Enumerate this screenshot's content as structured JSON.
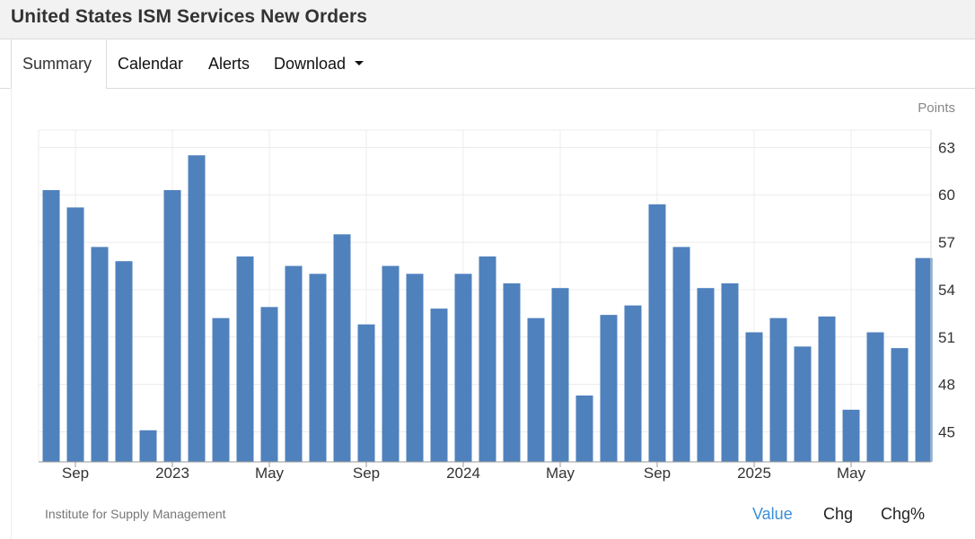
{
  "page": {
    "title": "United States ISM Services New Orders"
  },
  "tabs": [
    {
      "label": "Summary",
      "active": true
    },
    {
      "label": "Calendar",
      "active": false
    },
    {
      "label": "Alerts",
      "active": false
    },
    {
      "label": "Download",
      "active": false
    }
  ],
  "chart": {
    "unit_label": "Points",
    "source": "Institute for Supply Management",
    "bar_color": "#4f81bd"
  },
  "footer_tabs": [
    {
      "label": "Value",
      "active": true
    },
    {
      "label": "Chg",
      "active": false
    },
    {
      "label": "Chg%",
      "active": false
    }
  ],
  "chart_data": {
    "type": "bar",
    "ylabel": "Points",
    "ylim": [
      43.1,
      64.1
    ],
    "yticks": [
      45,
      48,
      51,
      54,
      57,
      60,
      63
    ],
    "grid": true,
    "x_tick_labels": [
      {
        "label": "Sep",
        "category": "2022-09"
      },
      {
        "label": "2023",
        "category": "2023-01"
      },
      {
        "label": "May",
        "category": "2023-05"
      },
      {
        "label": "Sep",
        "category": "2023-09"
      },
      {
        "label": "2024",
        "category": "2024-01"
      },
      {
        "label": "May",
        "category": "2024-05"
      },
      {
        "label": "Sep",
        "category": "2024-09"
      },
      {
        "label": "2025",
        "category": "2025-01"
      },
      {
        "label": "May",
        "category": "2025-05"
      }
    ],
    "categories": [
      "2022-08",
      "2022-09",
      "2022-10",
      "2022-11",
      "2022-12",
      "2023-01",
      "2023-02",
      "2023-03",
      "2023-04",
      "2023-05",
      "2023-06",
      "2023-07",
      "2023-08",
      "2023-09",
      "2023-10",
      "2023-11",
      "2023-12",
      "2024-01",
      "2024-02",
      "2024-03",
      "2024-04",
      "2024-05",
      "2024-06",
      "2024-07",
      "2024-08",
      "2024-09",
      "2024-10",
      "2024-11",
      "2024-12",
      "2025-01",
      "2025-02",
      "2025-03",
      "2025-04",
      "2025-05",
      "2025-06",
      "2025-07",
      "2025-08"
    ],
    "values": [
      60.3,
      59.2,
      56.7,
      55.8,
      45.1,
      60.3,
      62.5,
      52.2,
      56.1,
      52.9,
      55.5,
      55.0,
      57.5,
      51.8,
      55.5,
      55.0,
      52.8,
      55.0,
      56.1,
      54.4,
      52.2,
      54.1,
      47.3,
      52.4,
      53.0,
      59.4,
      56.7,
      54.1,
      54.4,
      51.3,
      52.2,
      50.4,
      52.3,
      46.4,
      51.3,
      50.3,
      56.0
    ]
  }
}
